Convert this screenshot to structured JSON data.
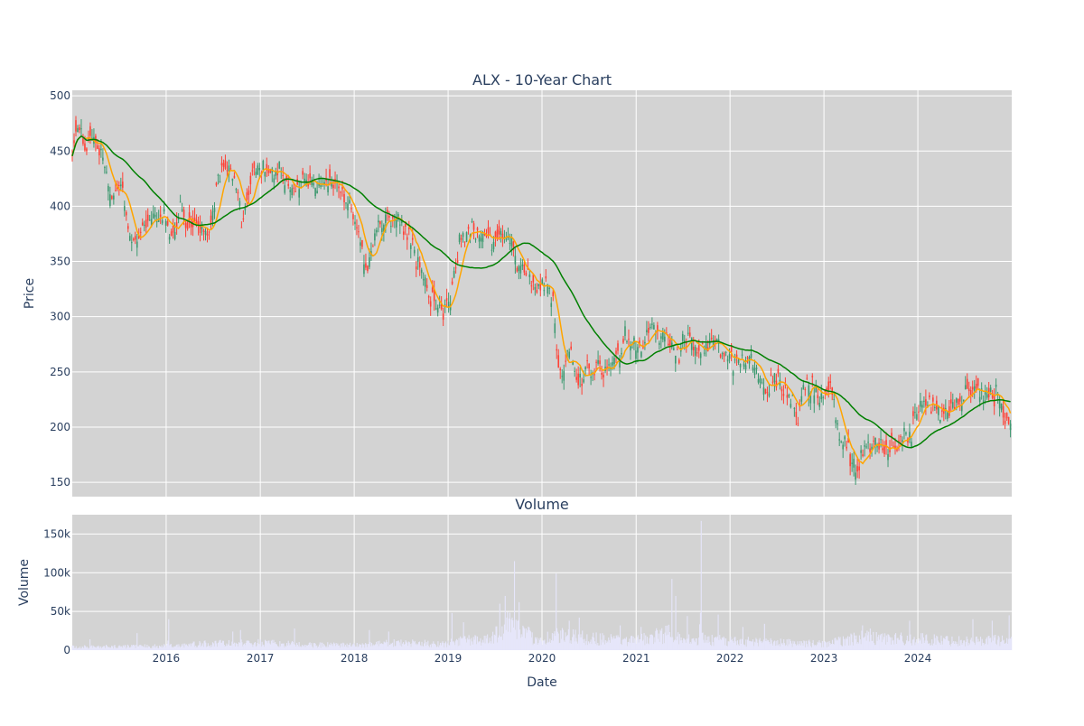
{
  "chart_data": [
    {
      "type": "candlestick",
      "title": "ALX - 10-Year Chart",
      "ylabel": "Price",
      "ylim": [
        137,
        505
      ],
      "xlim": [
        "2015-01-01",
        "2024-12-31"
      ],
      "x_ticks": [
        "2016",
        "2017",
        "2018",
        "2019",
        "2020",
        "2021",
        "2022",
        "2023",
        "2024"
      ],
      "y_ticks": [
        150,
        200,
        250,
        300,
        350,
        400,
        450,
        500
      ],
      "grid": true,
      "increasing_color": "#3d9970",
      "decreasing_color": "#ff4136",
      "background_color": "#d3d3d3",
      "price_anchors": [
        [
          "2015-01-05",
          455
        ],
        [
          "2015-01-25",
          475
        ],
        [
          "2015-02-20",
          448
        ],
        [
          "2015-03-20",
          462
        ],
        [
          "2015-04-25",
          448
        ],
        [
          "2015-06-01",
          412
        ],
        [
          "2015-07-10",
          418
        ],
        [
          "2015-08-15",
          368
        ],
        [
          "2015-09-25",
          378
        ],
        [
          "2015-11-10",
          388
        ],
        [
          "2015-12-20",
          392
        ],
        [
          "2016-01-25",
          365
        ],
        [
          "2016-02-20",
          398
        ],
        [
          "2016-04-01",
          385
        ],
        [
          "2016-05-10",
          382
        ],
        [
          "2016-06-15",
          370
        ],
        [
          "2016-07-20",
          425
        ],
        [
          "2016-08-25",
          435
        ],
        [
          "2016-09-30",
          420
        ],
        [
          "2016-10-20",
          382
        ],
        [
          "2016-11-20",
          415
        ],
        [
          "2016-12-20",
          440
        ],
        [
          "2017-02-10",
          425
        ],
        [
          "2017-04-01",
          430
        ],
        [
          "2017-05-20",
          418
        ],
        [
          "2017-07-01",
          428
        ],
        [
          "2017-08-20",
          420
        ],
        [
          "2017-10-01",
          425
        ],
        [
          "2017-11-15",
          415
        ],
        [
          "2017-12-20",
          398
        ],
        [
          "2018-01-20",
          375
        ],
        [
          "2018-02-10",
          342
        ],
        [
          "2018-03-20",
          372
        ],
        [
          "2018-05-01",
          390
        ],
        [
          "2018-06-15",
          385
        ],
        [
          "2018-07-20",
          380
        ],
        [
          "2018-08-20",
          360
        ],
        [
          "2018-09-20",
          345
        ],
        [
          "2018-10-25",
          315
        ],
        [
          "2018-12-10",
          305
        ],
        [
          "2019-01-10",
          318
        ],
        [
          "2019-02-15",
          370
        ],
        [
          "2019-04-01",
          380
        ],
        [
          "2019-05-15",
          378
        ],
        [
          "2019-06-20",
          370
        ],
        [
          "2019-07-25",
          365
        ],
        [
          "2019-08-25",
          378
        ],
        [
          "2019-09-25",
          345
        ],
        [
          "2019-11-10",
          335
        ],
        [
          "2019-12-20",
          325
        ],
        [
          "2020-01-20",
          335
        ],
        [
          "2020-02-15",
          310
        ],
        [
          "2020-03-01",
          260
        ],
        [
          "2020-03-20",
          245
        ],
        [
          "2020-04-20",
          268
        ],
        [
          "2020-05-20",
          240
        ],
        [
          "2020-06-20",
          252
        ],
        [
          "2020-08-01",
          258
        ],
        [
          "2020-09-10",
          250
        ],
        [
          "2020-10-15",
          258
        ],
        [
          "2020-11-15",
          280
        ],
        [
          "2020-12-15",
          278
        ],
        [
          "2021-01-20",
          270
        ],
        [
          "2021-02-20",
          292
        ],
        [
          "2021-04-01",
          285
        ],
        [
          "2021-05-10",
          278
        ],
        [
          "2021-06-20",
          270
        ],
        [
          "2021-07-20",
          278
        ],
        [
          "2021-08-25",
          268
        ],
        [
          "2021-10-01",
          272
        ],
        [
          "2021-11-01",
          275
        ],
        [
          "2021-12-01",
          262
        ],
        [
          "2022-01-10",
          262
        ],
        [
          "2022-02-20",
          255
        ],
        [
          "2022-04-01",
          258
        ],
        [
          "2022-05-01",
          238
        ],
        [
          "2022-06-01",
          232
        ],
        [
          "2022-07-10",
          248
        ],
        [
          "2022-08-20",
          222
        ],
        [
          "2022-09-20",
          210
        ],
        [
          "2022-10-20",
          240
        ],
        [
          "2022-11-20",
          238
        ],
        [
          "2022-12-20",
          225
        ],
        [
          "2023-02-01",
          232
        ],
        [
          "2023-03-01",
          195
        ],
        [
          "2023-04-01",
          180
        ],
        [
          "2023-05-05",
          162
        ],
        [
          "2023-06-01",
          180
        ],
        [
          "2023-07-01",
          185
        ],
        [
          "2023-08-01",
          190
        ],
        [
          "2023-09-01",
          180
        ],
        [
          "2023-10-01",
          185
        ],
        [
          "2023-11-01",
          188
        ],
        [
          "2023-12-01",
          195
        ],
        [
          "2024-01-01",
          215
        ],
        [
          "2024-02-01",
          220
        ],
        [
          "2024-03-01",
          218
        ],
        [
          "2024-04-01",
          215
        ],
        [
          "2024-05-01",
          215
        ],
        [
          "2024-06-01",
          220
        ],
        [
          "2024-07-01",
          228
        ],
        [
          "2024-08-01",
          238
        ],
        [
          "2024-09-01",
          230
        ],
        [
          "2024-10-01",
          232
        ],
        [
          "2024-11-01",
          225
        ],
        [
          "2024-12-01",
          215
        ],
        [
          "2024-12-31",
          200
        ]
      ]
    },
    {
      "type": "bar",
      "title": "Volume",
      "xlabel": "Date",
      "ylabel": "Volume",
      "ylim": [
        0,
        175000
      ],
      "y_ticks": [
        0,
        50000,
        100000,
        150000
      ],
      "y_tick_labels": [
        "0",
        "50k",
        "100k",
        "150k"
      ],
      "x_ticks": [
        "2016",
        "2017",
        "2018",
        "2019",
        "2020",
        "2021",
        "2022",
        "2023",
        "2024"
      ],
      "grid": true,
      "bar_color": "#e6e6fa",
      "background_color": "#d3d3d3",
      "volume_levels": [
        [
          "2015-01-01",
          4000
        ],
        [
          "2015-12-31",
          5000
        ],
        [
          "2016-06-01",
          8000
        ],
        [
          "2016-12-31",
          9000
        ],
        [
          "2017-06-01",
          7000
        ],
        [
          "2017-12-31",
          6000
        ],
        [
          "2018-06-01",
          9000
        ],
        [
          "2018-12-31",
          8000
        ],
        [
          "2019-03-01",
          12000
        ],
        [
          "2019-06-01",
          14000
        ],
        [
          "2019-08-15",
          32000
        ],
        [
          "2019-10-01",
          28000
        ],
        [
          "2019-12-01",
          14000
        ],
        [
          "2020-03-15",
          18000
        ],
        [
          "2020-06-01",
          16000
        ],
        [
          "2020-12-31",
          12000
        ],
        [
          "2021-05-15",
          22000
        ],
        [
          "2021-07-01",
          14000
        ],
        [
          "2021-12-31",
          12000
        ],
        [
          "2022-06-01",
          10000
        ],
        [
          "2022-12-31",
          8000
        ],
        [
          "2023-06-01",
          16000
        ],
        [
          "2023-12-31",
          14000
        ],
        [
          "2024-06-01",
          12000
        ],
        [
          "2024-12-31",
          13000
        ]
      ],
      "volume_spikes": [
        [
          "2015-03-10",
          14000
        ],
        [
          "2015-09-10",
          22000
        ],
        [
          "2016-01-10",
          40000
        ],
        [
          "2016-09-15",
          24000
        ],
        [
          "2016-10-15",
          26000
        ],
        [
          "2017-05-15",
          28000
        ],
        [
          "2018-03-01",
          26000
        ],
        [
          "2018-05-15",
          24000
        ],
        [
          "2019-01-15",
          48000
        ],
        [
          "2019-03-01",
          36000
        ],
        [
          "2019-07-20",
          60000
        ],
        [
          "2019-08-10",
          70000
        ],
        [
          "2019-09-15",
          115000
        ],
        [
          "2019-10-05",
          62000
        ],
        [
          "2020-02-25",
          99000
        ],
        [
          "2020-04-15",
          38000
        ],
        [
          "2020-05-25",
          42000
        ],
        [
          "2020-11-01",
          32000
        ],
        [
          "2021-01-20",
          30000
        ],
        [
          "2021-05-20",
          92000
        ],
        [
          "2021-06-05",
          70000
        ],
        [
          "2021-07-20",
          44000
        ],
        [
          "2021-09-10",
          167000
        ],
        [
          "2021-11-15",
          46000
        ],
        [
          "2022-02-20",
          30000
        ],
        [
          "2022-05-15",
          34000
        ],
        [
          "2023-06-01",
          32000
        ],
        [
          "2023-07-01",
          28000
        ],
        [
          "2023-12-01",
          38000
        ],
        [
          "2024-08-01",
          40000
        ],
        [
          "2024-10-15",
          38000
        ],
        [
          "2024-12-20",
          45000
        ]
      ]
    }
  ]
}
